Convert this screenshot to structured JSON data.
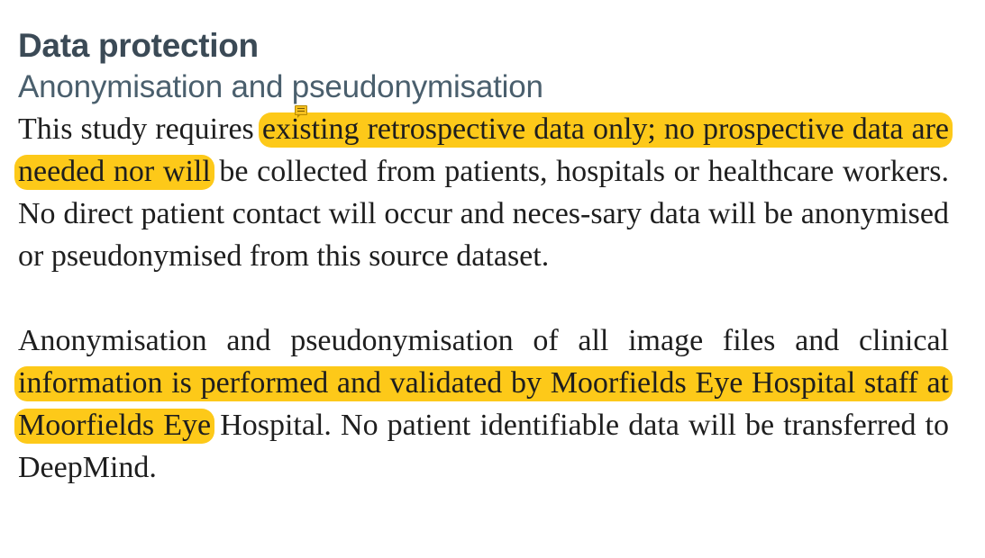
{
  "section": {
    "title": "Data protection",
    "subtitle": "Anonymisation and pseudonymisation"
  },
  "paragraphs": [
    {
      "before": "This study requires ",
      "highlight": "existing retrospective data only; no prospective data are needed nor will",
      "after": " be collected from patients, hospitals or healthcare workers. No direct patient contact will occur and neces-sary data will be anonymised or pseudonymised from this source dataset."
    },
    {
      "before": "Anonymisation and pseudonymisation of all image files and clinical ",
      "highlight": "information is performed and validated by Moorfields Eye Hospital staff at Moorfields Eye",
      "after": " Hospital. No patient identifiable data will be transferred to DeepMind."
    }
  ],
  "annotation": {
    "icon": "comment-note-icon",
    "highlight_color": "#fdc919"
  }
}
